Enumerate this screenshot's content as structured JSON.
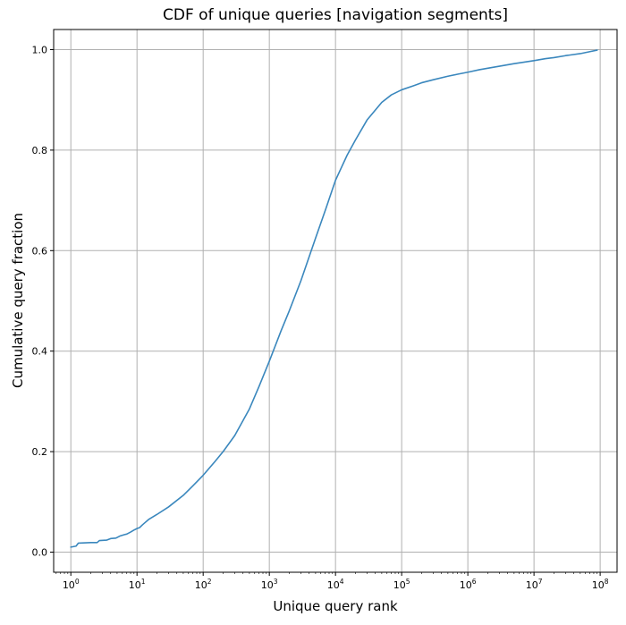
{
  "chart_data": {
    "type": "line",
    "title": "CDF of unique queries [navigation segments]",
    "xlabel": "Unique query rank",
    "ylabel": "Cumulative query fraction",
    "xscale": "log",
    "xlim": [
      0.55,
      180000000
    ],
    "ylim": [
      -0.04,
      1.04
    ],
    "grid": true,
    "colors": {
      "series": "#3a87bd"
    },
    "xticks": [
      {
        "value": 1,
        "base": "10",
        "exp": "0"
      },
      {
        "value": 10,
        "base": "10",
        "exp": "1"
      },
      {
        "value": 100,
        "base": "10",
        "exp": "2"
      },
      {
        "value": 1000,
        "base": "10",
        "exp": "3"
      },
      {
        "value": 10000,
        "base": "10",
        "exp": "4"
      },
      {
        "value": 100000,
        "base": "10",
        "exp": "5"
      },
      {
        "value": 1000000,
        "base": "10",
        "exp": "6"
      },
      {
        "value": 10000000,
        "base": "10",
        "exp": "7"
      },
      {
        "value": 100000000,
        "base": "10",
        "exp": "8"
      }
    ],
    "yticks": [
      {
        "value": 0.0,
        "label": "0.0"
      },
      {
        "value": 0.2,
        "label": "0.2"
      },
      {
        "value": 0.4,
        "label": "0.4"
      },
      {
        "value": 0.6,
        "label": "0.6"
      },
      {
        "value": 0.8,
        "label": "0.8"
      },
      {
        "value": 1.0,
        "label": "1.0"
      }
    ],
    "series": [
      {
        "x": [
          1,
          1.2,
          1.3,
          2,
          2.5,
          2.7,
          3.5,
          4,
          4.8,
          5.5,
          6.5,
          7,
          8,
          9,
          10,
          11,
          12,
          13,
          15,
          20,
          30,
          50,
          70,
          100,
          150,
          200,
          300,
          500,
          700,
          1000,
          1500,
          2000,
          3000,
          5000,
          7000,
          10000,
          15000,
          20000,
          30000,
          50000,
          70000,
          100000,
          150000,
          200000,
          300000,
          500000,
          700000,
          1000000,
          1500000,
          2000000,
          3000000,
          5000000,
          7000000,
          10000000,
          15000000,
          20000000,
          30000000,
          50000000,
          70000000,
          90000000
        ],
        "y": [
          0.01,
          0.012,
          0.018,
          0.019,
          0.019,
          0.023,
          0.024,
          0.027,
          0.028,
          0.032,
          0.035,
          0.036,
          0.04,
          0.044,
          0.047,
          0.049,
          0.054,
          0.058,
          0.065,
          0.075,
          0.09,
          0.113,
          0.132,
          0.153,
          0.18,
          0.2,
          0.232,
          0.285,
          0.33,
          0.38,
          0.44,
          0.48,
          0.54,
          0.625,
          0.68,
          0.74,
          0.79,
          0.82,
          0.86,
          0.895,
          0.91,
          0.92,
          0.928,
          0.934,
          0.94,
          0.947,
          0.951,
          0.955,
          0.96,
          0.963,
          0.967,
          0.972,
          0.975,
          0.978,
          0.982,
          0.984,
          0.988,
          0.992,
          0.996,
          0.999
        ]
      }
    ]
  }
}
